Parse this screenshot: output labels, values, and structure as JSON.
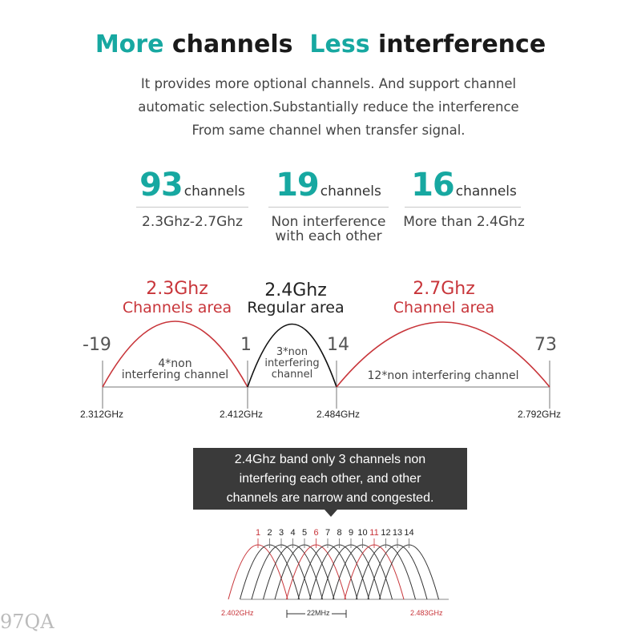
{
  "header": {
    "title_part1": "More",
    "title_part2": "channels",
    "title_part3": "Less",
    "title_part4": "interference",
    "subtitle_lines": [
      "It provides more optional channels. And support channel",
      "automatic selection.Substantially reduce the interference",
      "From same channel when transfer signal."
    ]
  },
  "stats": [
    {
      "number": "93",
      "unit": "channels",
      "desc_lines": [
        "2.3Ghz-2.7Ghz"
      ]
    },
    {
      "number": "19",
      "unit": "channels",
      "desc_lines": [
        "Non interference",
        "with each other"
      ]
    },
    {
      "number": "16",
      "unit": "channels",
      "desc_lines": [
        "More than 2.4Ghz"
      ]
    }
  ],
  "diagram": {
    "areas": [
      {
        "ghz": "2.3Ghz",
        "name": "Channels area",
        "inner_lines": [
          "4*non",
          "interfering channel"
        ]
      },
      {
        "ghz": "2.4Ghz",
        "name": "Regular area",
        "inner_lines": [
          "3*non",
          "interfering",
          "channel"
        ]
      },
      {
        "ghz": "2.7Ghz",
        "name": "Channel area",
        "inner_lines": [
          "12*non interfering channel"
        ]
      }
    ],
    "channel_markers": [
      "-19",
      "1",
      "14",
      "73"
    ],
    "frequencies": [
      "2.312GHz",
      "2.412GHz",
      "2.484GHz",
      "2.792GHz"
    ],
    "colors": {
      "red": "#c8353a",
      "black": "#111111",
      "accent": "#17a8a1"
    }
  },
  "callout": {
    "lines": [
      "2.4Ghz band only 3 channels non",
      "interfering each other, and other",
      "channels are narrow and congested."
    ]
  },
  "channels_detail": {
    "numbers": [
      "1",
      "2",
      "3",
      "4",
      "5",
      "6",
      "7",
      "8",
      "9",
      "10",
      "11",
      "12",
      "13",
      "14"
    ],
    "highlighted": [
      "1",
      "6",
      "11"
    ],
    "freq_start": "2.402GHz",
    "freq_end": "2.483GHz",
    "width_label": "22MHz"
  },
  "watermark": "97QA"
}
